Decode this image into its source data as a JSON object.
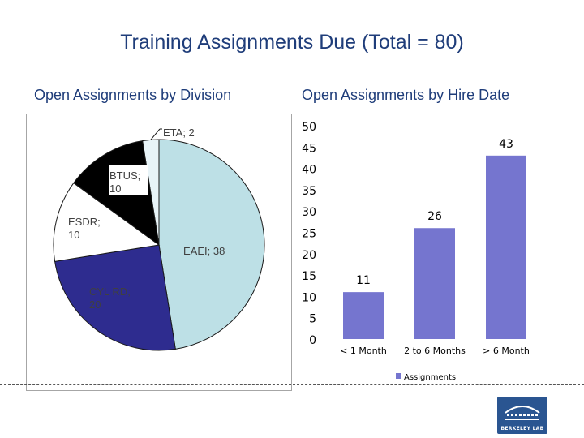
{
  "page": {
    "title": "Training Assignments Due (Total = 80)"
  },
  "logo": {
    "text": "BERKELEY LAB",
    "color": "#2a5591"
  },
  "chart_data": [
    {
      "type": "pie",
      "title": "Open Assignments by Division",
      "slices": [
        {
          "label": "ETA",
          "value": 2,
          "display": "ETA; 2",
          "color": "#e8f4f8"
        },
        {
          "label": "EAEI",
          "value": 38,
          "display": "EAEI; 38",
          "color": "#bde0e6"
        },
        {
          "label": "CYL RD",
          "value": 20,
          "display": "CYL RD; 20",
          "color": "#2e2c8f"
        },
        {
          "label": "ESDR",
          "value": 10,
          "display": "ESDR; 10",
          "color": "#ffffff"
        },
        {
          "label": "BTUS",
          "value": 10,
          "display": "BTUS; 10",
          "color": "#000000"
        }
      ]
    },
    {
      "type": "bar",
      "title": "Open Assignments by Hire Date",
      "categories": [
        "< 1 Month",
        "2 to 6 Months",
        "> 6 Month"
      ],
      "series": [
        {
          "name": "Assignments",
          "values": [
            11,
            26,
            43
          ],
          "color": "#7575cf"
        }
      ],
      "ylim": [
        0,
        50
      ],
      "yticks": [
        "0",
        "5",
        "10",
        "15",
        "20",
        "25",
        "30",
        "35",
        "40",
        "45",
        "50"
      ],
      "legend": "bottom"
    }
  ]
}
